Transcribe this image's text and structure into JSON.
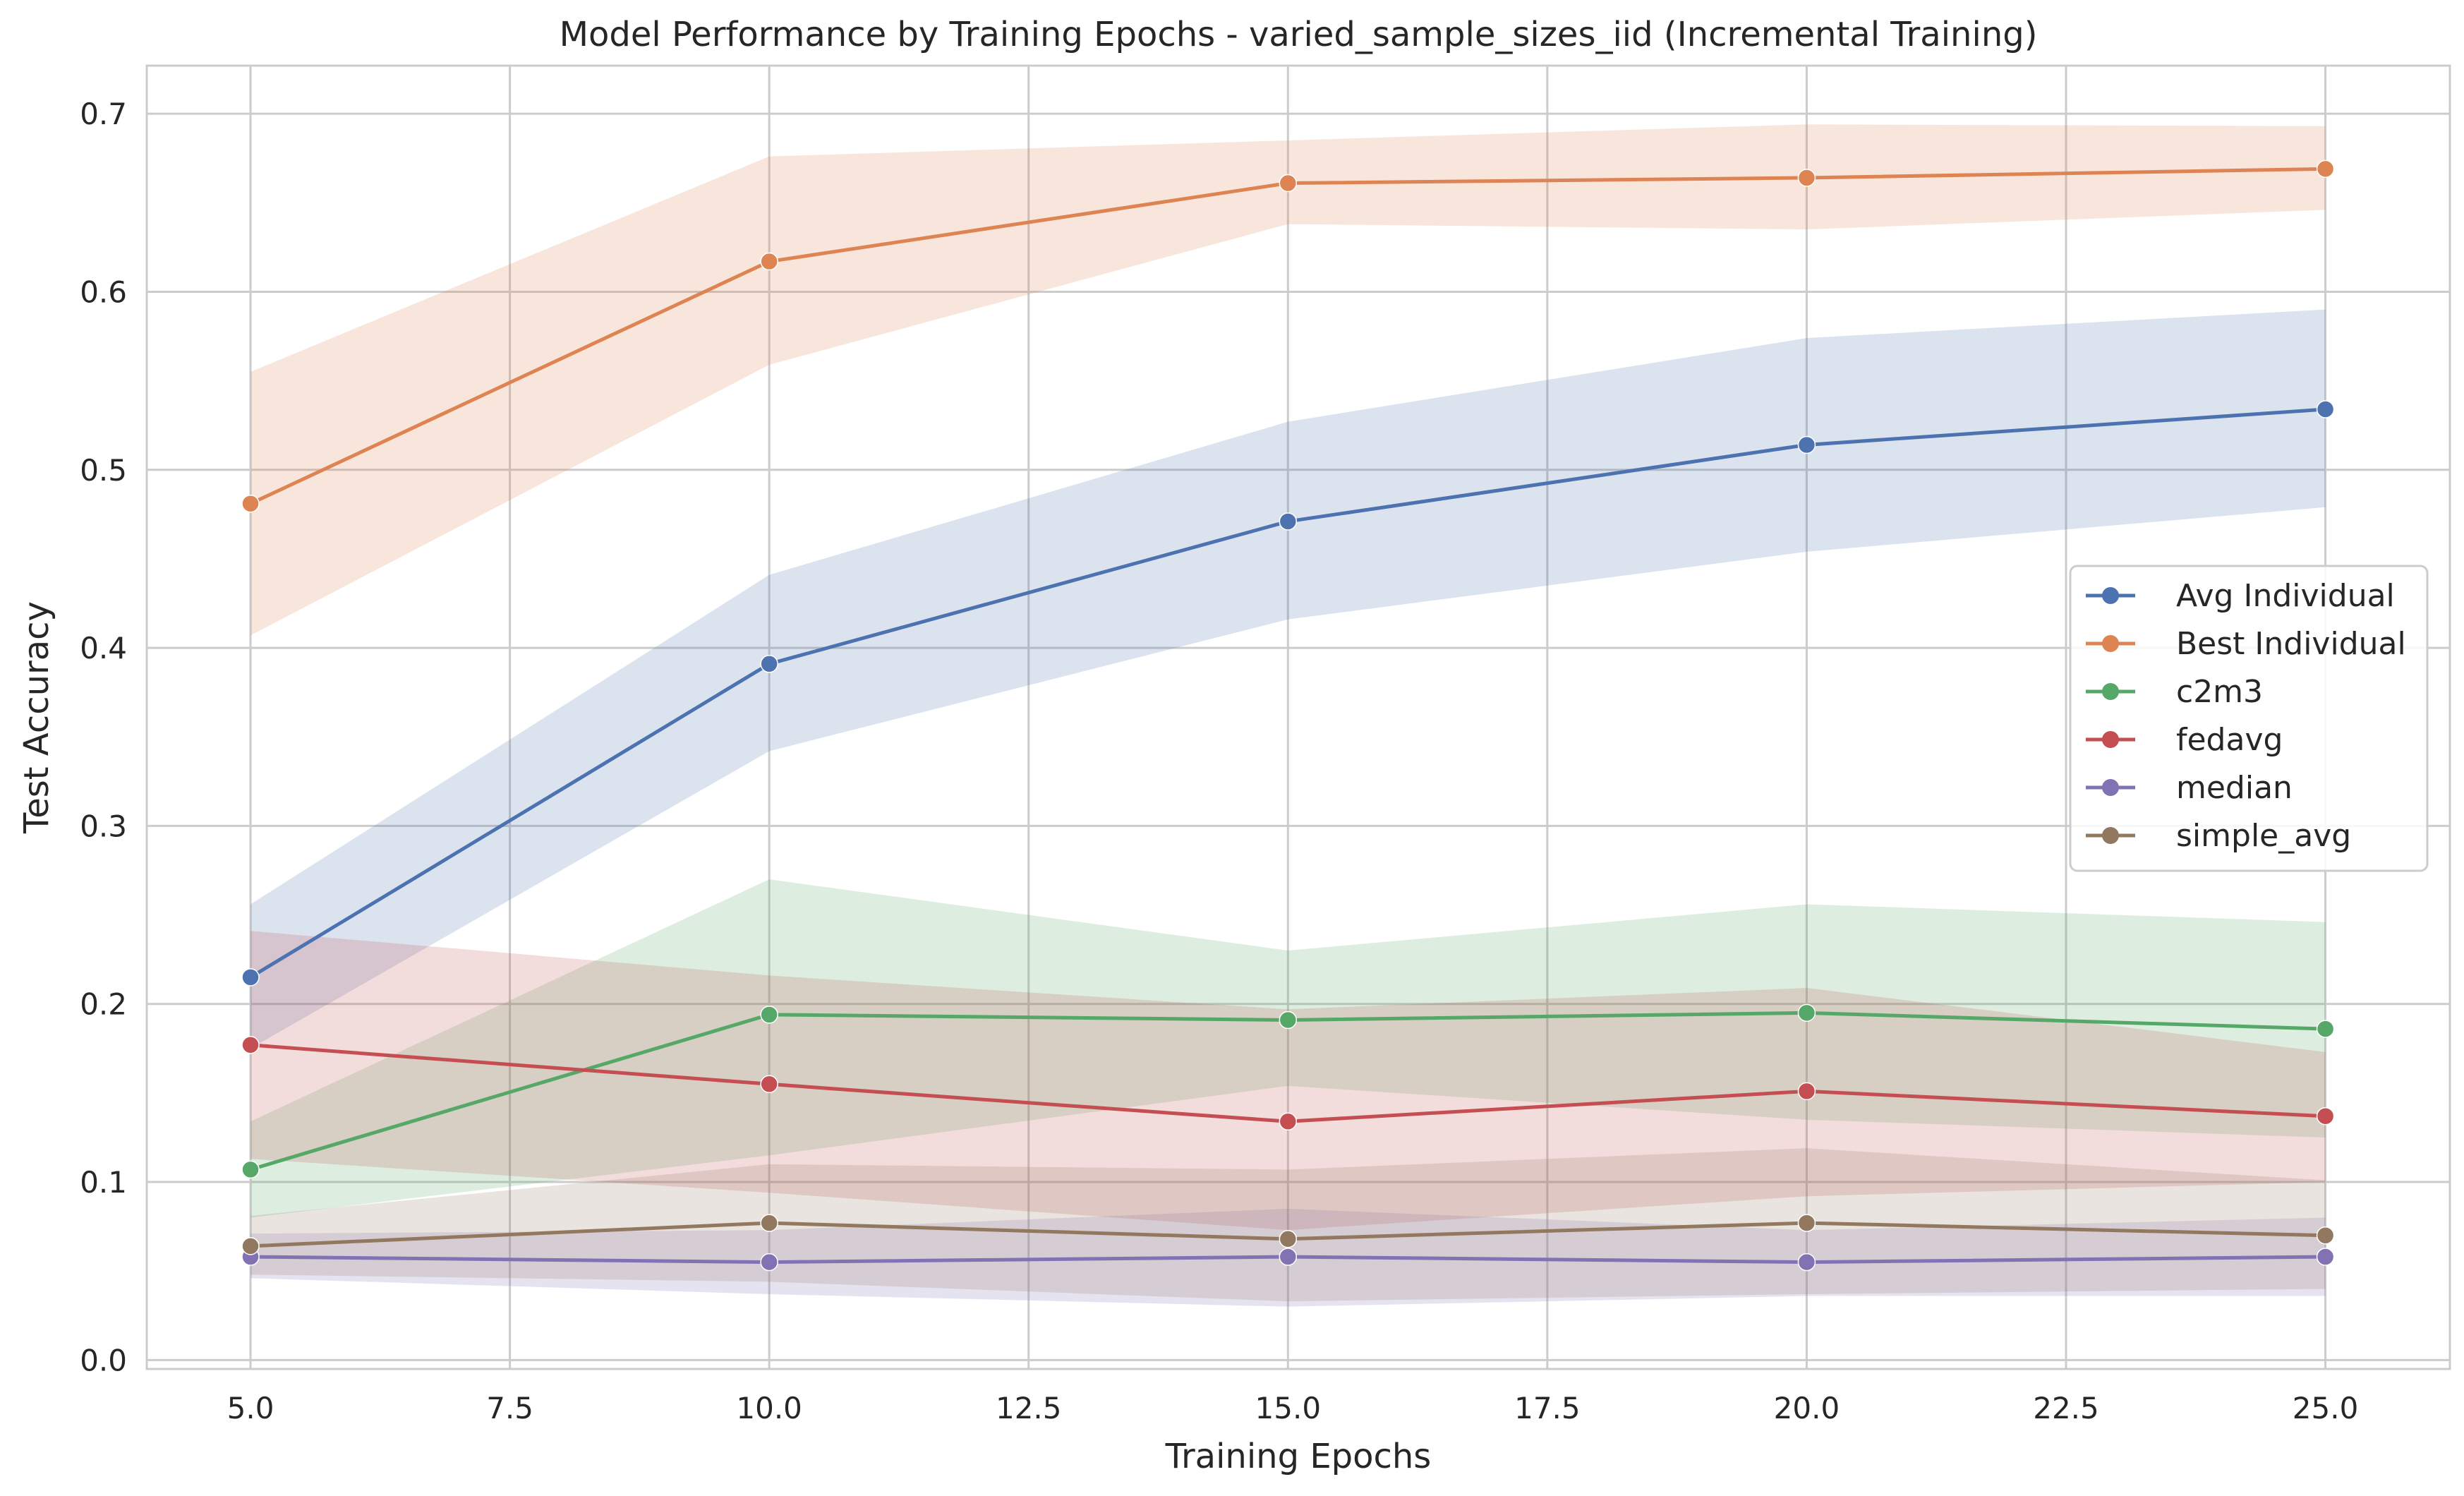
{
  "chart_data": {
    "type": "line",
    "title": "Model Performance by Training Epochs - varied_sample_sizes_iid (Incremental Training)",
    "xlabel": "Training Epochs",
    "ylabel": "Test Accuracy",
    "xlim": [
      4.0,
      26.2
    ],
    "ylim": [
      -0.005,
      0.727
    ],
    "x_ticks": [
      5.0,
      7.5,
      10.0,
      12.5,
      15.0,
      17.5,
      20.0,
      22.5,
      25.0
    ],
    "x_tick_labels": [
      "5.0",
      "7.5",
      "10.0",
      "12.5",
      "15.0",
      "17.5",
      "20.0",
      "22.5",
      "25.0"
    ],
    "y_ticks": [
      0.0,
      0.1,
      0.2,
      0.3,
      0.4,
      0.5,
      0.6,
      0.7
    ],
    "y_tick_labels": [
      "0.0",
      "0.1",
      "0.2",
      "0.3",
      "0.4",
      "0.5",
      "0.6",
      "0.7"
    ],
    "grid": true,
    "legend_position": "center-right",
    "x": [
      5,
      10,
      15,
      20,
      25
    ],
    "series": [
      {
        "name": "Avg Individual",
        "color": "#4c72b0",
        "values": [
          0.215,
          0.391,
          0.471,
          0.514,
          0.534
        ],
        "lower": [
          0.175,
          0.342,
          0.416,
          0.454,
          0.479
        ],
        "upper": [
          0.256,
          0.441,
          0.527,
          0.574,
          0.59
        ]
      },
      {
        "name": "Best Individual",
        "color": "#dd8452",
        "values": [
          0.481,
          0.617,
          0.661,
          0.664,
          0.669
        ],
        "lower": [
          0.407,
          0.559,
          0.638,
          0.635,
          0.646
        ],
        "upper": [
          0.555,
          0.676,
          0.685,
          0.694,
          0.693
        ]
      },
      {
        "name": "c2m3",
        "color": "#55a868",
        "values": [
          0.107,
          0.194,
          0.191,
          0.195,
          0.186
        ],
        "lower": [
          0.08,
          0.115,
          0.154,
          0.135,
          0.125
        ],
        "upper": [
          0.134,
          0.27,
          0.23,
          0.256,
          0.246
        ]
      },
      {
        "name": "fedavg",
        "color": "#c44e52",
        "values": [
          0.177,
          0.155,
          0.134,
          0.151,
          0.137
        ],
        "lower": [
          0.113,
          0.094,
          0.073,
          0.092,
          0.1
        ],
        "upper": [
          0.241,
          0.216,
          0.197,
          0.209,
          0.173
        ]
      },
      {
        "name": "median",
        "color": "#8172b3",
        "values": [
          0.058,
          0.055,
          0.058,
          0.055,
          0.058
        ],
        "lower": [
          0.046,
          0.037,
          0.03,
          0.036,
          0.036
        ],
        "upper": [
          0.071,
          0.073,
          0.085,
          0.073,
          0.08
        ]
      },
      {
        "name": "simple_avg",
        "color": "#937860",
        "values": [
          0.064,
          0.077,
          0.068,
          0.077,
          0.07
        ],
        "lower": [
          0.048,
          0.044,
          0.033,
          0.037,
          0.04
        ],
        "upper": [
          0.081,
          0.11,
          0.107,
          0.119,
          0.101
        ]
      }
    ]
  }
}
